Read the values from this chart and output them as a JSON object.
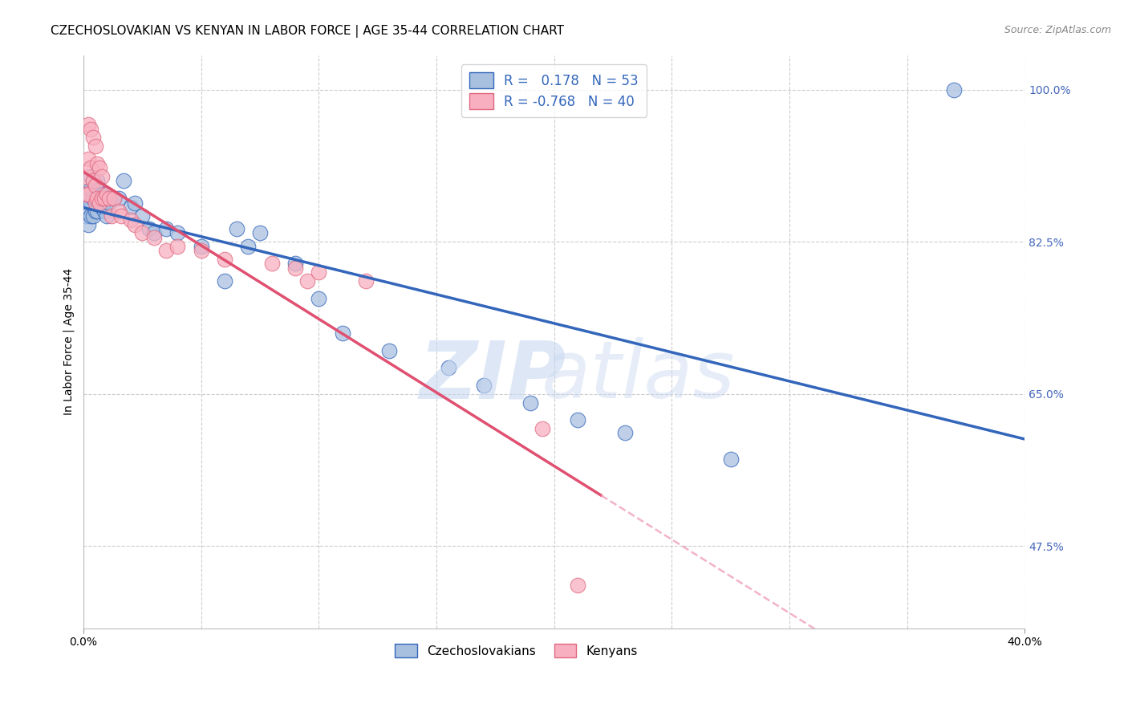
{
  "title": "CZECHOSLOVAKIAN VS KENYAN IN LABOR FORCE | AGE 35-44 CORRELATION CHART",
  "source": "Source: ZipAtlas.com",
  "ylabel": "In Labor Force | Age 35-44",
  "xlim": [
    0.0,
    0.4
  ],
  "ylim": [
    0.38,
    1.04
  ],
  "right_ytick_positions": [
    1.0,
    0.825,
    0.65,
    0.475
  ],
  "right_ytick_labels": [
    "100.0%",
    "82.5%",
    "65.0%",
    "47.5%"
  ],
  "blue_fill": "#A8C0E0",
  "blue_edge": "#3366BB",
  "pink_fill": "#F8B0C0",
  "pink_edge": "#E06880",
  "blue_line": "#3366BB",
  "pink_line": "#E05070",
  "pink_dash": "#F0A0B8",
  "watermark_zip": "#C8D8F0",
  "watermark_atlas": "#C8D8F0",
  "czech_x": [
    0.001,
    0.001,
    0.002,
    0.002,
    0.002,
    0.003,
    0.003,
    0.003,
    0.003,
    0.004,
    0.004,
    0.004,
    0.005,
    0.005,
    0.005,
    0.006,
    0.006,
    0.006,
    0.007,
    0.007,
    0.008,
    0.008,
    0.009,
    0.009,
    0.01,
    0.01,
    0.011,
    0.013,
    0.015,
    0.017,
    0.02,
    0.022,
    0.025,
    0.028,
    0.03,
    0.035,
    0.04,
    0.05,
    0.06,
    0.065,
    0.07,
    0.075,
    0.09,
    0.1,
    0.11,
    0.13,
    0.155,
    0.17,
    0.19,
    0.21,
    0.23,
    0.275,
    0.37
  ],
  "czech_y": [
    0.875,
    0.855,
    0.88,
    0.865,
    0.845,
    0.9,
    0.885,
    0.87,
    0.855,
    0.895,
    0.875,
    0.855,
    0.89,
    0.875,
    0.86,
    0.895,
    0.875,
    0.86,
    0.885,
    0.87,
    0.88,
    0.865,
    0.88,
    0.86,
    0.875,
    0.855,
    0.87,
    0.875,
    0.875,
    0.895,
    0.865,
    0.87,
    0.855,
    0.84,
    0.835,
    0.84,
    0.835,
    0.82,
    0.78,
    0.84,
    0.82,
    0.835,
    0.8,
    0.76,
    0.72,
    0.7,
    0.68,
    0.66,
    0.64,
    0.62,
    0.605,
    0.575,
    1.0
  ],
  "kenyan_x": [
    0.001,
    0.001,
    0.002,
    0.002,
    0.002,
    0.003,
    0.003,
    0.004,
    0.004,
    0.005,
    0.005,
    0.005,
    0.006,
    0.006,
    0.007,
    0.007,
    0.008,
    0.008,
    0.009,
    0.01,
    0.011,
    0.012,
    0.013,
    0.015,
    0.016,
    0.02,
    0.022,
    0.025,
    0.03,
    0.035,
    0.04,
    0.05,
    0.06,
    0.08,
    0.09,
    0.095,
    0.1,
    0.12,
    0.195,
    0.21
  ],
  "kenyan_y": [
    0.9,
    0.88,
    0.96,
    0.92,
    0.88,
    0.955,
    0.91,
    0.945,
    0.895,
    0.935,
    0.89,
    0.87,
    0.915,
    0.875,
    0.91,
    0.87,
    0.9,
    0.875,
    0.875,
    0.88,
    0.875,
    0.855,
    0.875,
    0.86,
    0.855,
    0.85,
    0.845,
    0.835,
    0.83,
    0.815,
    0.82,
    0.815,
    0.805,
    0.8,
    0.795,
    0.78,
    0.79,
    0.78,
    0.61,
    0.43
  ]
}
